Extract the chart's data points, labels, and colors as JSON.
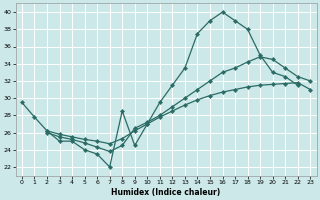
{
  "xlabel": "Humidex (Indice chaleur)",
  "bg_color": "#cce8e8",
  "grid_color": "#ffffff",
  "line_color": "#2a6b65",
  "xlim": [
    -0.5,
    23.5
  ],
  "ylim": [
    21.0,
    41.0
  ],
  "yticks": [
    22,
    24,
    26,
    28,
    30,
    32,
    34,
    36,
    38,
    40
  ],
  "xticks": [
    0,
    1,
    2,
    3,
    4,
    5,
    6,
    7,
    8,
    9,
    10,
    11,
    12,
    13,
    14,
    15,
    16,
    17,
    18,
    19,
    20,
    21,
    22,
    23
  ],
  "line1_x": [
    0,
    1,
    2,
    3,
    4,
    5,
    6,
    7,
    8,
    9,
    10,
    11,
    12,
    13,
    14,
    15,
    16,
    17,
    18,
    19,
    20,
    21,
    22
  ],
  "line1_y": [
    29.5,
    27.8,
    26.2,
    25.0,
    25.0,
    24.0,
    23.5,
    22.0,
    28.5,
    24.5,
    27.0,
    29.5,
    31.5,
    33.5,
    37.5,
    39.0,
    40.0,
    39.0,
    38.0,
    35.0,
    33.0,
    32.5,
    31.5
  ],
  "line2_x": [
    2,
    3,
    4,
    5,
    6,
    7,
    8,
    9,
    10,
    11,
    12,
    13,
    14,
    15,
    16,
    17,
    18,
    19,
    20,
    21,
    22,
    23
  ],
  "line2_y": [
    26.2,
    25.8,
    25.5,
    25.2,
    25.0,
    24.7,
    25.3,
    26.2,
    27.0,
    27.8,
    28.5,
    29.2,
    29.8,
    30.3,
    30.7,
    31.0,
    31.3,
    31.5,
    31.6,
    31.7,
    31.8,
    31.0
  ],
  "line3_x": [
    2,
    3,
    4,
    5,
    6,
    7,
    8,
    9,
    10,
    11,
    12,
    13,
    14,
    15,
    16,
    17,
    18,
    19,
    20,
    21,
    22,
    23
  ],
  "line3_y": [
    26.0,
    25.5,
    25.2,
    24.8,
    24.3,
    23.8,
    24.5,
    26.5,
    27.2,
    28.0,
    29.0,
    30.0,
    31.0,
    32.0,
    33.0,
    33.5,
    34.2,
    34.8,
    34.5,
    33.5,
    32.5,
    32.0
  ]
}
